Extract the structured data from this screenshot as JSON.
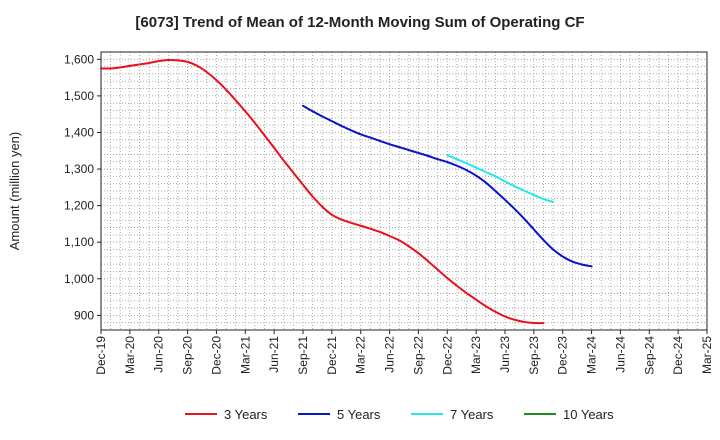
{
  "chart_data": {
    "type": "line",
    "title": "[6073]  Trend of Mean of 12-Month Moving Sum of Operating CF",
    "xlabel": "",
    "ylabel": "Amount (million yen)",
    "ylim": [
      860,
      1620
    ],
    "yticks": [
      900,
      1000,
      1100,
      1200,
      1300,
      1400,
      1500,
      1600
    ],
    "ytick_labels": [
      "900",
      "1,000",
      "1,100",
      "1,200",
      "1,300",
      "1,400",
      "1,500",
      "1,600"
    ],
    "x_labels": [
      "Dec-19",
      "Mar-20",
      "Jun-20",
      "Sep-20",
      "Dec-20",
      "Mar-21",
      "Jun-21",
      "Sep-21",
      "Dec-21",
      "Mar-22",
      "Jun-22",
      "Sep-22",
      "Dec-22",
      "Mar-23",
      "Jun-23",
      "Sep-23",
      "Dec-23",
      "Mar-24",
      "Jun-24",
      "Sep-24",
      "Dec-24",
      "Mar-25"
    ],
    "grid": true,
    "legend_position": "bottom",
    "series": [
      {
        "name": "3 Years",
        "color": "#e8121b",
        "start_index": 0,
        "values": [
          1575,
          1575,
          1578,
          1582,
          1586,
          1590,
          1595,
          1598,
          1597,
          1593,
          1582,
          1565,
          1543,
          1517,
          1488,
          1458,
          1426,
          1392,
          1358,
          1323,
          1290,
          1257,
          1225,
          1197,
          1175,
          1162,
          1153,
          1145,
          1137,
          1128,
          1117,
          1105,
          1089,
          1070,
          1048,
          1025,
          1002,
          981,
          961,
          943,
          925,
          910,
          897,
          888,
          882,
          879,
          879
        ]
      },
      {
        "name": "5 Years",
        "color": "#0a14c8",
        "start_index": 21,
        "values": [
          1473,
          1458,
          1444,
          1431,
          1418,
          1406,
          1395,
          1386,
          1377,
          1368,
          1360,
          1352,
          1344,
          1336,
          1327,
          1319,
          1309,
          1297,
          1282,
          1263,
          1240,
          1216,
          1191,
          1164,
          1135,
          1106,
          1080,
          1061,
          1047,
          1039,
          1034
        ]
      },
      {
        "name": "7 Years",
        "color": "#22e8ee",
        "start_index": 36,
        "values": [
          1338,
          1327,
          1316,
          1304,
          1292,
          1280,
          1266,
          1253,
          1241,
          1229,
          1218,
          1210
        ]
      },
      {
        "name": "10 Years",
        "color": "#1e8c1e",
        "start_index": 0,
        "values": []
      }
    ]
  }
}
